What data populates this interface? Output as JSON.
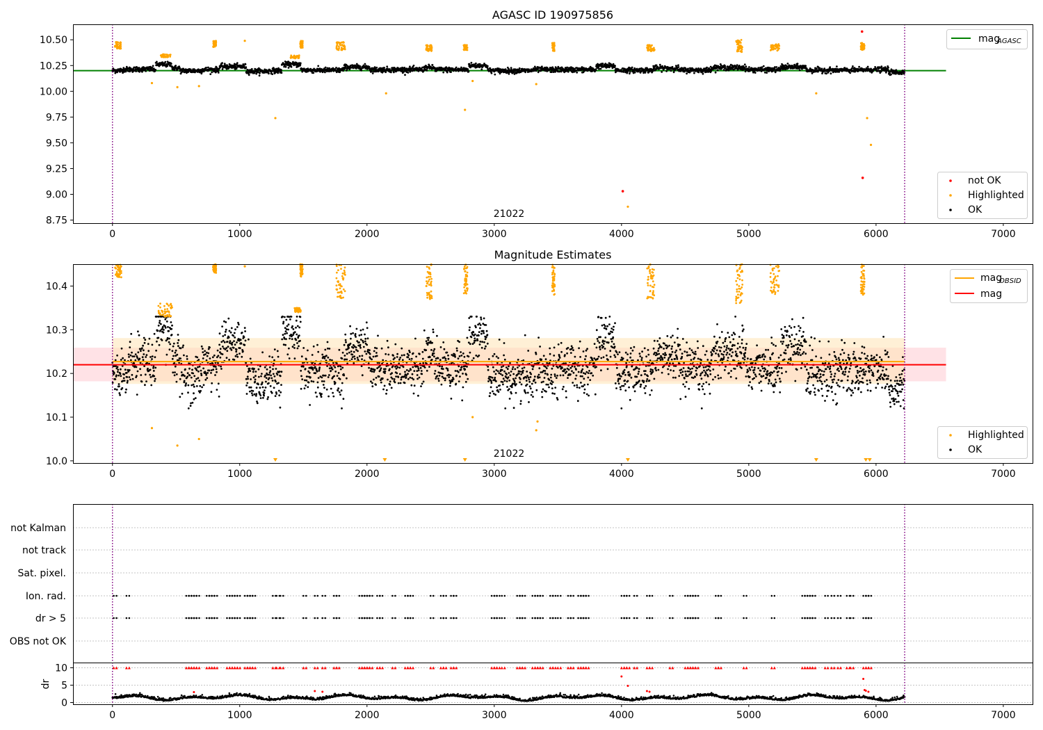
{
  "chart_data": [
    {
      "id": "agasc",
      "type": "scatter",
      "title": "AGASC ID 190975856",
      "xlim": [
        -310,
        7230
      ],
      "ylim": [
        8.72,
        10.65
      ],
      "xticks": [
        0,
        1000,
        2000,
        3000,
        4000,
        5000,
        6000,
        7000
      ],
      "xtick_labels": [
        "0",
        "1000",
        "2000",
        "3000",
        "4000",
        "5000",
        "6000",
        "7000"
      ],
      "yticks": [
        8.75,
        9.0,
        9.25,
        9.5,
        9.75,
        10.0,
        10.25,
        10.5
      ],
      "ytick_labels": [
        "8.75",
        "9.00",
        "9.25",
        "9.50",
        "9.75",
        "10.00",
        "10.25",
        "10.50"
      ],
      "obs_boundaries": [
        0,
        6225
      ],
      "obs_label": "21022",
      "obs_label_x": 3110,
      "colors": {
        "ok": "#000000",
        "highlighted": "#ffa500",
        "not_ok": "#ff0000",
        "mag_agasc": "#008000",
        "boundary": "#800080"
      },
      "mag_agasc_line": {
        "value": 10.2,
        "x_range": [
          -310,
          6550
        ]
      },
      "ok_baseline": 10.21,
      "ok_noise": 0.025,
      "ok_x_range": [
        0,
        6225
      ],
      "ok_segments": [
        {
          "x": [
            0,
            80
          ],
          "offset": -0.015
        },
        {
          "x": [
            80,
            180
          ],
          "offset": 0.005
        },
        {
          "x": [
            180,
            320
          ],
          "offset": 0.01
        },
        {
          "x": [
            340,
            470
          ],
          "offset": 0.1
        },
        {
          "x": [
            470,
            530
          ],
          "offset": 0.03
        },
        {
          "x": [
            530,
            700
          ],
          "offset": -0.02
        },
        {
          "x": [
            700,
            820
          ],
          "offset": 0.0
        },
        {
          "x": [
            840,
            1050
          ],
          "offset": 0.06
        },
        {
          "x": [
            1050,
            1230
          ],
          "offset": -0.03
        },
        {
          "x": [
            1230,
            1330
          ],
          "offset": -0.02
        },
        {
          "x": [
            1330,
            1480
          ],
          "offset": 0.1
        },
        {
          "x": [
            1500,
            1800
          ],
          "offset": -0.01
        },
        {
          "x": [
            1820,
            2020
          ],
          "offset": 0.05
        },
        {
          "x": [
            2020,
            2450
          ],
          "offset": 0.0
        },
        {
          "x": [
            2450,
            2530
          ],
          "offset": 0.04
        },
        {
          "x": [
            2550,
            2750
          ],
          "offset": 0.0
        },
        {
          "x": [
            2800,
            2950
          ],
          "offset": 0.08
        },
        {
          "x": [
            2950,
            3300
          ],
          "offset": -0.02
        },
        {
          "x": [
            3300,
            3800
          ],
          "offset": 0.0
        },
        {
          "x": [
            3800,
            3950
          ],
          "offset": 0.07
        },
        {
          "x": [
            3950,
            4250
          ],
          "offset": -0.01
        },
        {
          "x": [
            4250,
            4450
          ],
          "offset": 0.03
        },
        {
          "x": [
            4450,
            4700
          ],
          "offset": -0.01
        },
        {
          "x": [
            4700,
            4980
          ],
          "offset": 0.04
        },
        {
          "x": [
            4980,
            5250
          ],
          "offset": 0.0
        },
        {
          "x": [
            5250,
            5450
          ],
          "offset": 0.05
        },
        {
          "x": [
            5450,
            5900
          ],
          "offset": -0.01
        },
        {
          "x": [
            5900,
            6100
          ],
          "offset": 0.0
        },
        {
          "x": [
            6100,
            6225
          ],
          "offset": -0.05
        }
      ],
      "highlighted_clusters": [
        {
          "x": [
            20,
            70
          ],
          "y": [
            10.41,
            10.48
          ]
        },
        {
          "x": [
            790,
            815
          ],
          "y": [
            10.43,
            10.49
          ]
        },
        {
          "x": [
            1475,
            1495
          ],
          "y": [
            10.42,
            10.49
          ]
        },
        {
          "x": [
            1760,
            1830
          ],
          "y": [
            10.4,
            10.48
          ]
        },
        {
          "x": [
            2465,
            2510
          ],
          "y": [
            10.39,
            10.45
          ]
        },
        {
          "x": [
            2760,
            2790
          ],
          "y": [
            10.4,
            10.45
          ]
        },
        {
          "x": [
            3455,
            3475
          ],
          "y": [
            10.39,
            10.47
          ]
        },
        {
          "x": [
            4200,
            4260
          ],
          "y": [
            10.39,
            10.45
          ]
        },
        {
          "x": [
            4900,
            4950
          ],
          "y": [
            10.38,
            10.5
          ]
        },
        {
          "x": [
            5170,
            5240
          ],
          "y": [
            10.39,
            10.46
          ]
        },
        {
          "x": [
            5880,
            5910
          ],
          "y": [
            10.4,
            10.47
          ]
        },
        {
          "x": [
            380,
            460
          ],
          "y": [
            10.33,
            10.36
          ]
        },
        {
          "x": [
            1400,
            1470
          ],
          "y": [
            10.32,
            10.35
          ]
        }
      ],
      "highlighted_points": [
        {
          "x": 310,
          "y": 10.08
        },
        {
          "x": 510,
          "y": 10.04
        },
        {
          "x": 680,
          "y": 10.05
        },
        {
          "x": 1040,
          "y": 10.49
        },
        {
          "x": 1280,
          "y": 9.74
        },
        {
          "x": 2150,
          "y": 9.98
        },
        {
          "x": 2770,
          "y": 9.82
        },
        {
          "x": 2830,
          "y": 10.1
        },
        {
          "x": 3330,
          "y": 10.07
        },
        {
          "x": 4050,
          "y": 8.88
        },
        {
          "x": 5530,
          "y": 9.98
        },
        {
          "x": 5930,
          "y": 9.74
        },
        {
          "x": 5960,
          "y": 9.48
        }
      ],
      "not_ok_points": [
        {
          "x": 4010,
          "y": 9.03
        },
        {
          "x": 5890,
          "y": 10.58
        },
        {
          "x": 5895,
          "y": 9.16
        }
      ],
      "legend_upper": [
        "mag",
        "AGASC"
      ],
      "legend_lower": [
        "not OK",
        "Highlighted",
        "OK"
      ]
    },
    {
      "id": "estimates",
      "type": "scatter",
      "title": "Magnitude Estimates",
      "xlim": [
        -310,
        7230
      ],
      "ylim": [
        9.995,
        10.45
      ],
      "xticks": [
        0,
        1000,
        2000,
        3000,
        4000,
        5000,
        6000,
        7000
      ],
      "xtick_labels": [
        "0",
        "1000",
        "2000",
        "3000",
        "4000",
        "5000",
        "6000",
        "7000"
      ],
      "yticks": [
        10.0,
        10.1,
        10.2,
        10.3,
        10.4
      ],
      "ytick_labels": [
        "10.0",
        "10.1",
        "10.2",
        "10.3",
        "10.4"
      ],
      "obs_boundaries": [
        0,
        6225
      ],
      "obs_label": "21022",
      "obs_label_x": 3110,
      "colors": {
        "ok": "#000000",
        "highlighted": "#ffa500",
        "mag_obsid": "#ffa500",
        "mag": "#ff0000",
        "band_obsid": "#ffe4b5",
        "band_mag": "#ffb6c1",
        "boundary": "#800080"
      },
      "mag_line": {
        "value": 10.22,
        "x_range": [
          -310,
          6550
        ]
      },
      "mag_band": {
        "low": 10.182,
        "high": 10.259,
        "x_range": [
          -310,
          6550
        ]
      },
      "mag_obsid_line": {
        "value": 10.227,
        "x_range": [
          0,
          6225
        ]
      },
      "mag_obsid_band": {
        "low": 10.176,
        "high": 10.281,
        "x_range": [
          0,
          6225
        ]
      },
      "ok_x_range": [
        0,
        6225
      ],
      "highlighted_clusters": [
        {
          "x": [
            20,
            70
          ],
          "y": [
            10.42,
            10.45
          ]
        },
        {
          "x": [
            790,
            815
          ],
          "y": [
            10.43,
            10.45
          ]
        },
        {
          "x": [
            1475,
            1495
          ],
          "y": [
            10.42,
            10.45
          ]
        },
        {
          "x": [
            1760,
            1830
          ],
          "y": [
            10.37,
            10.45
          ]
        },
        {
          "x": [
            2465,
            2510
          ],
          "y": [
            10.37,
            10.45
          ]
        },
        {
          "x": [
            2760,
            2790
          ],
          "y": [
            10.38,
            10.45
          ]
        },
        {
          "x": [
            3455,
            3475
          ],
          "y": [
            10.38,
            10.45
          ]
        },
        {
          "x": [
            4200,
            4260
          ],
          "y": [
            10.37,
            10.45
          ]
        },
        {
          "x": [
            4900,
            4950
          ],
          "y": [
            10.36,
            10.45
          ]
        },
        {
          "x": [
            5170,
            5240
          ],
          "y": [
            10.38,
            10.45
          ]
        },
        {
          "x": [
            5880,
            5910
          ],
          "y": [
            10.38,
            10.45
          ]
        },
        {
          "x": [
            360,
            470
          ],
          "y": [
            10.33,
            10.36
          ]
        },
        {
          "x": [
            1430,
            1480
          ],
          "y": [
            10.34,
            10.35
          ]
        }
      ],
      "highlighted_points": [
        {
          "x": 310,
          "y": 10.075
        },
        {
          "x": 510,
          "y": 10.035
        },
        {
          "x": 680,
          "y": 10.05
        },
        {
          "x": 1040,
          "y": 10.445
        },
        {
          "x": 2830,
          "y": 10.1
        },
        {
          "x": 3330,
          "y": 10.07
        },
        {
          "x": 3340,
          "y": 10.09
        }
      ],
      "highlighted_clipped_x": [
        1280,
        2140,
        2770,
        4050,
        5530,
        5920,
        5950
      ],
      "legend_upper": [
        "mag",
        "OBSID",
        "mag"
      ],
      "legend_lower": [
        "Highlighted",
        "OK"
      ]
    },
    {
      "id": "flags",
      "type": "scatter",
      "xlim": [
        -310,
        7230
      ],
      "flag_rows": [
        "not Kalman",
        "not track",
        "Sat. pixel.",
        "Ion. rad.",
        "dr > 5",
        "OBS not OK"
      ],
      "flag_times": [
        10,
        110,
        580,
        600,
        620,
        640,
        660,
        740,
        760,
        780,
        800,
        900,
        920,
        940,
        960,
        980,
        1040,
        1060,
        1080,
        1100,
        1260,
        1290,
        1320,
        1500,
        1590,
        1650,
        1740,
        1760,
        1940,
        1960,
        1980,
        2000,
        2020,
        2080,
        2100,
        2200,
        2300,
        2320,
        2340,
        2500,
        2580,
        2600,
        2660,
        2680,
        2980,
        3000,
        3020,
        3060,
        3180,
        3200,
        3220,
        3300,
        3320,
        3340,
        3360,
        3440,
        3460,
        3500,
        3580,
        3600,
        3660,
        3680,
        3700,
        3720,
        4000,
        4020,
        4040,
        4100,
        4200,
        4220,
        4380,
        4500,
        4520,
        4540,
        4560,
        4580,
        4740,
        4760,
        4960,
        5180,
        5420,
        5440,
        5460,
        5480,
        5500,
        5600,
        5650,
        5700,
        5770,
        5800,
        5900,
        5920,
        5940
      ],
      "dr": {
        "ylabel": "dr",
        "ylim": [
          -0.5,
          11.5
        ],
        "yticks": [
          0,
          5,
          10
        ],
        "ytick_labels": [
          "0",
          "5",
          "10"
        ],
        "colors": {
          "ok": "#000000",
          "bad": "#ff0000"
        },
        "red_points": [
          {
            "x": 640,
            "y": 3.0
          },
          {
            "x": 1590,
            "y": 3.3
          },
          {
            "x": 1650,
            "y": 3.1
          },
          {
            "x": 4000,
            "y": 7.5
          },
          {
            "x": 4050,
            "y": 4.8
          },
          {
            "x": 4200,
            "y": 3.3
          },
          {
            "x": 4220,
            "y": 3.1
          },
          {
            "x": 5900,
            "y": 6.8
          },
          {
            "x": 5910,
            "y": 3.6
          },
          {
            "x": 5920,
            "y": 3.4
          },
          {
            "x": 5940,
            "y": 3.1
          }
        ]
      },
      "xticks": [
        0,
        1000,
        2000,
        3000,
        4000,
        5000,
        6000,
        7000
      ],
      "xtick_labels": [
        "0",
        "1000",
        "2000",
        "3000",
        "4000",
        "5000",
        "6000",
        "7000"
      ],
      "obs_boundaries": [
        0,
        6225
      ]
    }
  ]
}
